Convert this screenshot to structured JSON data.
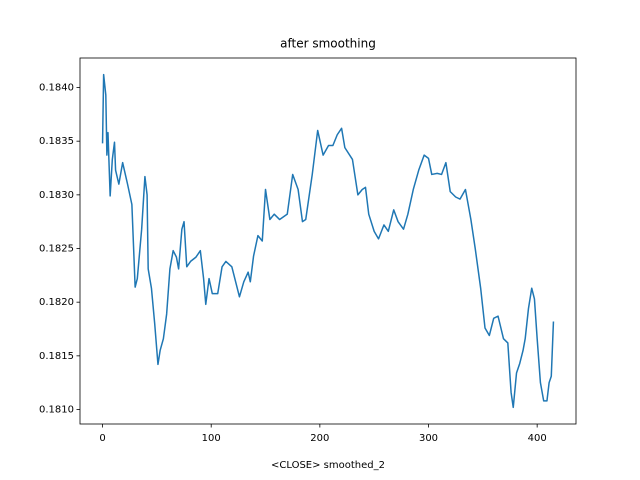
{
  "chart_data": {
    "type": "line",
    "title": "after smoothing",
    "x_label": "<CLOSE> smoothed_2",
    "x": [
      0,
      1,
      3,
      4,
      5,
      7,
      9,
      11,
      12,
      15,
      18.5,
      23,
      27,
      30,
      32,
      36,
      39,
      41,
      42,
      45,
      48,
      51,
      53,
      56,
      59,
      62,
      65,
      68,
      70,
      73,
      75,
      77.5,
      81,
      86,
      90,
      93,
      95,
      98,
      101,
      106,
      110,
      113.5,
      119,
      126,
      130,
      134,
      136,
      139,
      143,
      147,
      150,
      154,
      158,
      163,
      170,
      175,
      180,
      184,
      187,
      193,
      198,
      203,
      208,
      212,
      216,
      220,
      223,
      230,
      235,
      239,
      242,
      245,
      250,
      254,
      259,
      263,
      268,
      272,
      277,
      281,
      286,
      291,
      296,
      300,
      303,
      308,
      312,
      316,
      320,
      325,
      329,
      334,
      339,
      343,
      348,
      352,
      356,
      360,
      364,
      369,
      373,
      376,
      378,
      381,
      384,
      387,
      389,
      392,
      395,
      397.5,
      400,
      403,
      406,
      409,
      411,
      413,
      415
    ],
    "values": [
      0.18348,
      0.18412,
      0.18393,
      0.18337,
      0.18358,
      0.18299,
      0.18333,
      0.18349,
      0.18323,
      0.1831,
      0.1833,
      0.1831,
      0.18291,
      0.18214,
      0.18222,
      0.18268,
      0.18317,
      0.183,
      0.18231,
      0.18213,
      0.1818,
      0.18142,
      0.18155,
      0.18166,
      0.18189,
      0.18231,
      0.18248,
      0.18242,
      0.18231,
      0.18268,
      0.18275,
      0.18233,
      0.18238,
      0.18242,
      0.18248,
      0.18222,
      0.18198,
      0.18222,
      0.18208,
      0.18208,
      0.18233,
      0.18238,
      0.18233,
      0.18205,
      0.18219,
      0.18228,
      0.18219,
      0.18243,
      0.18262,
      0.18257,
      0.18305,
      0.18277,
      0.18282,
      0.18277,
      0.18282,
      0.18319,
      0.18305,
      0.18275,
      0.18277,
      0.18319,
      0.1836,
      0.18337,
      0.18346,
      0.18346,
      0.18356,
      0.18362,
      0.18344,
      0.18333,
      0.183,
      0.18305,
      0.18307,
      0.18282,
      0.18266,
      0.18259,
      0.18272,
      0.18266,
      0.18286,
      0.18275,
      0.18268,
      0.18282,
      0.18305,
      0.18323,
      0.18337,
      0.18334,
      0.18319,
      0.1832,
      0.18319,
      0.1833,
      0.18303,
      0.18298,
      0.18296,
      0.18305,
      0.18277,
      0.1825,
      0.18213,
      0.18176,
      0.18169,
      0.18185,
      0.18187,
      0.18166,
      0.18162,
      0.18116,
      0.18102,
      0.18134,
      0.18143,
      0.18155,
      0.18166,
      0.18194,
      0.18213,
      0.18203,
      0.18166,
      0.18125,
      0.18108,
      0.18108,
      0.18125,
      0.18131,
      0.18182
    ],
    "color": "#1f77b4",
    "xlim": [
      -20.75,
      435.75
    ],
    "xticks": [
      0,
      100,
      200,
      300,
      400
    ],
    "ylim": [
      0.180865,
      0.184275
    ],
    "yticks": [
      {
        "value": 0.181,
        "label": "0.1810"
      },
      {
        "value": 0.1815,
        "label": "0.1815"
      },
      {
        "value": 0.182,
        "label": "0.1820"
      },
      {
        "value": 0.1825,
        "label": "0.1825"
      },
      {
        "value": 0.183,
        "label": "0.1830"
      },
      {
        "value": 0.1835,
        "label": "0.1835"
      },
      {
        "value": 0.184,
        "label": "0.1840"
      }
    ]
  }
}
